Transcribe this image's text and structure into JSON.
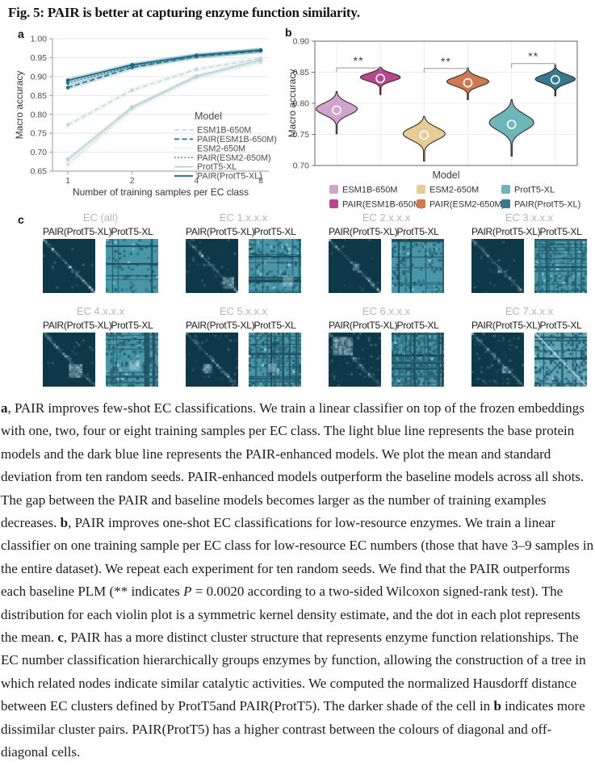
{
  "title": "Fig. 5: PAIR is better at capturing enzyme function similarity.",
  "panel_a": {
    "label": "a",
    "xlabel": "Number of training samples per EC class",
    "ylabel": "Macro accuracy",
    "legend_title": "Model"
  },
  "panel_b": {
    "label": "b",
    "xlabel": "Model",
    "ylabel": "Macro accuracy"
  },
  "panel_c": {
    "label": "c",
    "colors": {
      "pair_bg": "#0e3748",
      "base_bg": "#4797a9",
      "bright": "#c9ecf2"
    },
    "groups": [
      {
        "title": "EC (all)",
        "left": "PAIR(ProtT5-XL)",
        "right": "ProtT5-XL"
      },
      {
        "title": "EC 1.x.x.x",
        "left": "PAIR(ProtT5-XL)",
        "right": "ProtT5-XL"
      },
      {
        "title": "EC 2.x.x.x",
        "left": "PAIR(ProtT5-XL)",
        "right": "ProtT5-XL"
      },
      {
        "title": "EC 3.x.x.x",
        "left": "PAIR(ProtT5-XL)",
        "right": "ProtT5-XL"
      },
      {
        "title": "EC 4.x.x.x",
        "left": "PAIR(ProtT5-XL)",
        "right": "ProtT5-XL"
      },
      {
        "title": "EC 5.x.x.x",
        "left": "PAIR(ProtT5-XL)",
        "right": "ProtT5-XL"
      },
      {
        "title": "EC 6.x.x.x",
        "left": "PAIR(ProtT5-XL)",
        "right": "ProtT5-XL"
      },
      {
        "title": "EC 7.x.x.x",
        "left": "PAIR(ProtT5-XL)",
        "right": "ProtT5-XL"
      }
    ]
  },
  "chart_data": [
    {
      "id": "panel_a",
      "type": "line",
      "xlabel": "Number of training samples per EC class",
      "ylabel": "Macro accuracy",
      "x": [
        1,
        2,
        4,
        8
      ],
      "xtick_labels": [
        "1",
        "2",
        "4",
        "8"
      ],
      "ylim": [
        0.65,
        1.0
      ],
      "yticks": [
        0.65,
        0.7,
        0.75,
        0.8,
        0.85,
        0.9,
        0.95,
        1.0
      ],
      "grid": true,
      "legend_title": "Model",
      "legend_position": "inside lower right",
      "series": [
        {
          "name": "ESM1B-650M",
          "values": [
            0.772,
            0.864,
            0.919,
            0.948
          ],
          "color": "#c3d9d7",
          "dash": "dashed"
        },
        {
          "name": "PAIR(ESM1B-650M)",
          "values": [
            0.871,
            0.924,
            0.953,
            0.968
          ],
          "color": "#26708a",
          "dash": "dashed"
        },
        {
          "name": "ESM2-650M",
          "values": [
            0.668,
            0.815,
            0.898,
            0.938
          ],
          "color": "#cfe0de",
          "dash": "dotted"
        },
        {
          "name": "PAIR(ESM2-650M)",
          "values": [
            0.883,
            0.928,
            0.954,
            0.969
          ],
          "color": "#2f7e96",
          "dash": "dotted"
        },
        {
          "name": "ProtT5-XL",
          "values": [
            0.681,
            0.819,
            0.901,
            0.944
          ],
          "color": "#b7d2d2",
          "dash": "solid"
        },
        {
          "name": "PAIR(ProtT5-XL)",
          "values": [
            0.89,
            0.931,
            0.956,
            0.97
          ],
          "color": "#17657f",
          "dash": "solid"
        }
      ]
    },
    {
      "id": "panel_b",
      "type": "violin",
      "xlabel": "Model",
      "ylabel": "Macro accuracy",
      "ylim": [
        0.7,
        0.9
      ],
      "yticks": [
        0.7,
        0.75,
        0.8,
        0.85,
        0.9
      ],
      "grid": true,
      "legend_position": "below, 3 columns x 2 rows",
      "violins": [
        {
          "name": "ESM1B-650M",
          "color": "#cfa5cd",
          "mean": 0.789,
          "min": 0.751,
          "max": 0.819,
          "peak": 0.791,
          "relw": 0.98
        },
        {
          "name": "PAIR(ESM1B-650M)",
          "color": "#b9478e",
          "mean": 0.84,
          "min": 0.814,
          "max": 0.858,
          "peak": 0.842,
          "relw": 0.95
        },
        {
          "name": "ESM2-650M",
          "color": "#e7cd95",
          "mean": 0.749,
          "min": 0.707,
          "max": 0.779,
          "peak": 0.751,
          "relw": 1.0
        },
        {
          "name": "PAIR(ESM2-650M)",
          "color": "#cd7a52",
          "mean": 0.833,
          "min": 0.806,
          "max": 0.857,
          "peak": 0.835,
          "relw": 1.0
        },
        {
          "name": "ProtT5-XL",
          "color": "#6cb6ba",
          "mean": 0.766,
          "min": 0.715,
          "max": 0.806,
          "peak": 0.769,
          "relw": 1.06
        },
        {
          "name": "PAIR(ProtT5-XL)",
          "color": "#35798f",
          "mean": 0.838,
          "min": 0.812,
          "max": 0.862,
          "peak": 0.839,
          "relw": 0.95
        }
      ],
      "significance": [
        {
          "between": [
            0,
            1
          ],
          "label": "**",
          "y": 0.857
        },
        {
          "between": [
            2,
            3
          ],
          "label": "**",
          "y": 0.856
        },
        {
          "between": [
            4,
            5
          ],
          "label": "**",
          "y": 0.864
        }
      ]
    }
  ],
  "caption_segments": [
    {
      "t": "a",
      "b": true
    },
    {
      "t": ", PAIR improves few-shot EC classifications. We train a linear classifier on top of the frozen embeddings with one, two, four or eight training samples per EC class. The light blue line represents the base protein models and the dark blue line represents the PAIR-enhanced models. We plot the mean and standard deviation from ten random seeds. PAIR-enhanced models outperform the baseline models across all shots. The gap between the PAIR and baseline models becomes larger as the number of training examples decreases. "
    },
    {
      "t": "b",
      "b": true
    },
    {
      "t": ", PAIR improves one-shot EC classifications for low-resource enzymes. We train a linear classifier on one training sample per EC class for low-resource EC numbers (those that have 3–9 samples in the entire dataset). We repeat each experiment for ten random seeds. We find that the PAIR outperforms each baseline PLM (** indicates "
    },
    {
      "t": "P",
      "i": true
    },
    {
      "t": " = 0.0020 according to a two-sided Wilcoxon signed-rank test). The distribution for each violin plot is a symmetric kernel density estimate, and the dot in each plot represents the mean. "
    },
    {
      "t": "c",
      "b": true
    },
    {
      "t": ", PAIR has a more distinct cluster structure that represents enzyme function relationships. The EC number classification hierarchically groups enzymes by function, allowing the construction of a tree in which related nodes indicate similar catalytic activities. We computed the normalized Hausdorff distance between EC clusters defined by ProtT5and PAIR(ProtT5). The darker shade of the cell in "
    },
    {
      "t": "b",
      "b": true
    },
    {
      "t": " indicates more dissimilar cluster pairs. PAIR(ProtT5) has a higher contrast between the colours of diagonal and off-diagonal cells."
    }
  ]
}
